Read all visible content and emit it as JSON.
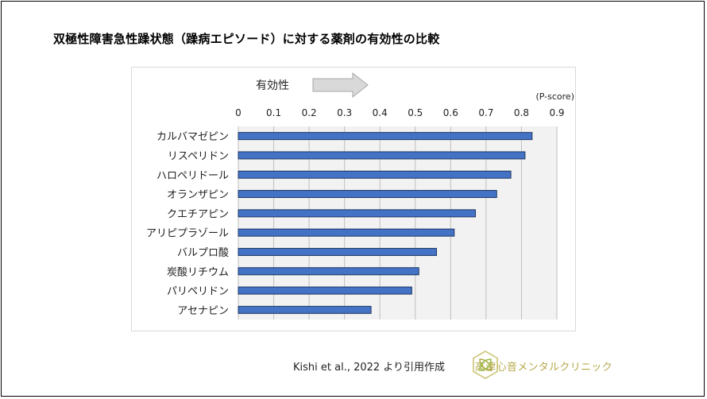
{
  "slide": {
    "title": "双極性障害急性躁状態（躁病エピソード）に対する薬剤の有効性の比較",
    "citation": "Kishi et al., 2022 より引用作成",
    "clinic_name": "高津心音メンタルクリニック"
  },
  "chart_data": {
    "type": "bar",
    "orientation": "horizontal",
    "title": "",
    "annotation": "有効性",
    "annotation_arrow": "right",
    "xlabel": "(P-score)",
    "ylabel": "",
    "xlim": [
      0,
      0.9
    ],
    "xticks": [
      0,
      0.1,
      0.2,
      0.3,
      0.4,
      0.5,
      0.6,
      0.7,
      0.8,
      0.9
    ],
    "xtick_labels": [
      "0",
      "0.1",
      "0.2",
      "0.3",
      "0.4",
      "0.5",
      "0.6",
      "0.7",
      "0.8",
      "0.9"
    ],
    "x_axis_position": "top",
    "grid": true,
    "categories": [
      "カルバマゼピン",
      "リスペリドン",
      "ハロペリドール",
      "オランザピン",
      "クエチアピン",
      "アリピプラゾール",
      "バルプロ酸",
      "炭酸リチウム",
      "パリペリドン",
      "アセナピン"
    ],
    "values": [
      0.83,
      0.81,
      0.77,
      0.73,
      0.67,
      0.61,
      0.56,
      0.51,
      0.49,
      0.375
    ],
    "colors": {
      "bar_fill": "#4472c4",
      "bar_stroke": "#1f3864",
      "plot_bg": "#f2f2f2",
      "grid": "#bfbfbf",
      "arrow_fill": "#d9d9d9",
      "arrow_stroke": "#a6a6a6"
    }
  },
  "logo": {
    "icon": "clinic-leaf-logo-icon",
    "color": "#b5a94a"
  }
}
